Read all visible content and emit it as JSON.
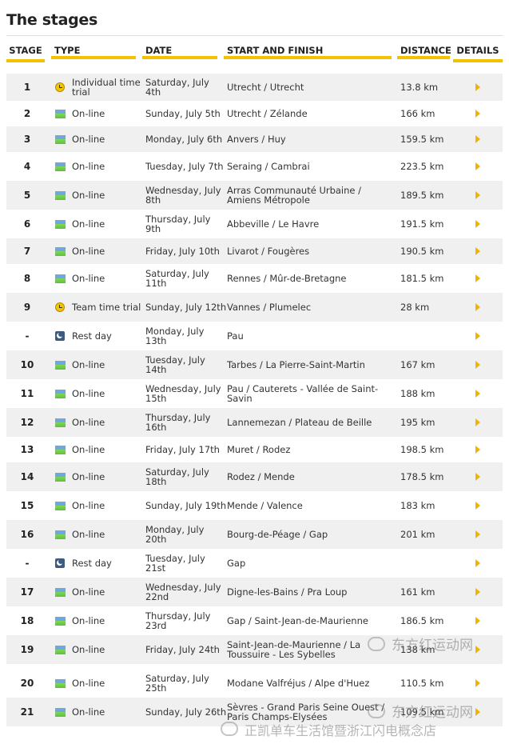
{
  "page": {
    "title": "The stages"
  },
  "headers": {
    "stage": "STAGE",
    "type": "TYPE",
    "date": "DATE",
    "route": "START AND FINISH",
    "distance": "DISTANCE",
    "details": "DETAILS"
  },
  "colors": {
    "accent": "#f2c200",
    "row_alt": "#f0f0f0",
    "arrow": "#f0b400"
  },
  "stages": [
    {
      "stage": "1",
      "icon": "clock-icon",
      "type": "Individual time trial",
      "date": "Saturday, July 4th",
      "route": "Utrecht / Utrecht",
      "distance": "13.8 km"
    },
    {
      "stage": "2",
      "icon": "flag-icon",
      "type": "On-line",
      "date": "Sunday, July 5th",
      "route": "Utrecht / Zélande",
      "distance": "166 km"
    },
    {
      "stage": "3",
      "icon": "flag-icon",
      "type": "On-line",
      "date": "Monday, July 6th",
      "route": "Anvers / Huy",
      "distance": "159.5 km"
    },
    {
      "stage": "4",
      "icon": "flag-icon",
      "type": "On-line",
      "date": "Tuesday, July 7th",
      "route": "Seraing / Cambrai",
      "distance": "223.5 km"
    },
    {
      "stage": "5",
      "icon": "flag-icon",
      "type": "On-line",
      "date": "Wednesday, July 8th",
      "route": "Arras Communauté Urbaine / Amiens Métropole",
      "distance": "189.5 km"
    },
    {
      "stage": "6",
      "icon": "flag-icon",
      "type": "On-line",
      "date": "Thursday, July 9th",
      "route": "Abbeville / Le Havre",
      "distance": "191.5 km"
    },
    {
      "stage": "7",
      "icon": "flag-icon",
      "type": "On-line",
      "date": "Friday, July 10th",
      "route": "Livarot / Fougères",
      "distance": "190.5 km"
    },
    {
      "stage": "8",
      "icon": "flag-icon",
      "type": "On-line",
      "date": "Saturday, July 11th",
      "route": "Rennes / Mûr-de-Bretagne",
      "distance": "181.5 km"
    },
    {
      "stage": "9",
      "icon": "clock-icon",
      "type": "Team time trial",
      "date": "Sunday, July 12th",
      "route": "Vannes / Plumelec",
      "distance": "28 km"
    },
    {
      "stage": "-",
      "icon": "moon-icon",
      "type": "Rest day",
      "date": "Monday, July 13th",
      "route": "Pau",
      "distance": ""
    },
    {
      "stage": "10",
      "icon": "flag-icon",
      "type": "On-line",
      "date": "Tuesday, July 14th",
      "route": "Tarbes / La Pierre-Saint-Martin",
      "distance": "167 km"
    },
    {
      "stage": "11",
      "icon": "flag-icon",
      "type": "On-line",
      "date": "Wednesday, July 15th",
      "route": "Pau / Cauterets - Vallée de Saint-Savin",
      "distance": "188 km"
    },
    {
      "stage": "12",
      "icon": "flag-icon",
      "type": "On-line",
      "date": "Thursday, July 16th",
      "route": "Lannemezan / Plateau de Beille",
      "distance": "195 km"
    },
    {
      "stage": "13",
      "icon": "flag-icon",
      "type": "On-line",
      "date": "Friday, July 17th",
      "route": "Muret / Rodez",
      "distance": "198.5 km"
    },
    {
      "stage": "14",
      "icon": "flag-icon",
      "type": "On-line",
      "date": "Saturday, July 18th",
      "route": "Rodez / Mende",
      "distance": "178.5 km"
    },
    {
      "stage": "15",
      "icon": "flag-icon",
      "type": "On-line",
      "date": "Sunday, July 19th",
      "route": "Mende / Valence",
      "distance": "183 km"
    },
    {
      "stage": "16",
      "icon": "flag-icon",
      "type": "On-line",
      "date": "Monday, July 20th",
      "route": "Bourg-de-Péage / Gap",
      "distance": "201 km"
    },
    {
      "stage": "-",
      "icon": "moon-icon",
      "type": "Rest day",
      "date": "Tuesday, July 21st",
      "route": "Gap",
      "distance": ""
    },
    {
      "stage": "17",
      "icon": "flag-icon",
      "type": "On-line",
      "date": "Wednesday, July 22nd",
      "route": "Digne-les-Bains / Pra Loup",
      "distance": "161 km"
    },
    {
      "stage": "18",
      "icon": "flag-icon",
      "type": "On-line",
      "date": "Thursday, July 23rd",
      "route": "Gap / Saint-Jean-de-Maurienne",
      "distance": "186.5 km"
    },
    {
      "stage": "19",
      "icon": "flag-icon",
      "type": "On-line",
      "date": "Friday, July 24th",
      "route": "Saint-Jean-de-Maurienne / La Toussuire - Les Sybelles",
      "distance": "138 km"
    },
    {
      "stage": "20",
      "icon": "flag-icon",
      "type": "On-line",
      "date": "Saturday, July 25th",
      "route": "Modane Valfréjus / Alpe d'Huez",
      "distance": "110.5 km"
    },
    {
      "stage": "21",
      "icon": "flag-icon",
      "type": "On-line",
      "date": "Sunday, July 26th",
      "route": "Sèvres - Grand Paris Seine Ouest / Paris Champs-Elysées",
      "distance": "109.5 km"
    }
  ],
  "watermarks": {
    "top": "东方红运动网",
    "bottom_line1": "东方红运动网",
    "bottom_line2": "正凯单车生活馆暨浙江闪电概念店"
  }
}
